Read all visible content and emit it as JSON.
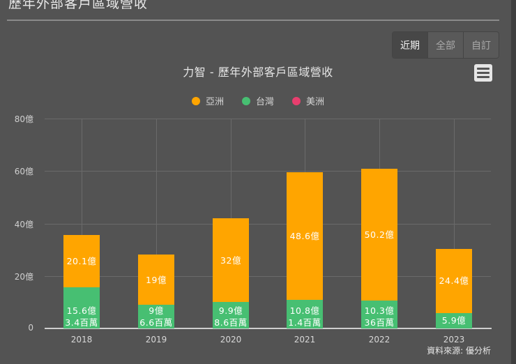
{
  "page": {
    "title": "歷年外部客戶區域營收"
  },
  "range_buttons": [
    {
      "label": "近期",
      "active": true
    },
    {
      "label": "全部",
      "active": false
    },
    {
      "label": "自訂",
      "active": false
    }
  ],
  "menu_icon": "hamburger-menu-icon",
  "colors": {
    "background": "#535353",
    "asia": "#FFA500",
    "taiwan": "#47BF72",
    "america": "#E83E6E"
  },
  "chart_data": {
    "type": "bar",
    "stacked": true,
    "title": "力智 - 歷年外部客戶區域營收",
    "xlabel": "",
    "ylabel": "",
    "unit": "億",
    "categories": [
      "2018",
      "2019",
      "2020",
      "2021",
      "2022",
      "2023"
    ],
    "series": [
      {
        "name": "亞洲",
        "color": "#FFA500",
        "values": [
          20.1,
          19,
          32,
          48.6,
          50.2,
          24.4
        ],
        "labels": [
          "20.1億",
          "19億",
          "32億",
          "48.6億",
          "50.2億",
          "24.4億"
        ]
      },
      {
        "name": "台灣",
        "color": "#47BF72",
        "values": [
          15.6,
          9,
          9.9,
          10.8,
          10.3,
          5.9
        ],
        "labels": [
          "15.6億",
          "9億",
          "9.9億",
          "10.8億",
          "10.3億",
          "5.9億"
        ]
      },
      {
        "name": "美洲",
        "color": "#E83E6E",
        "values": [
          0.034,
          0.066,
          0.086,
          0.014,
          0.36,
          0
        ],
        "labels": [
          "3.4百萬",
          "6.6百萬",
          "8.6百萬",
          "1.4百萬",
          "36百萬",
          ""
        ]
      }
    ],
    "yticks": [
      "0",
      "20億",
      "40億",
      "60億",
      "80億"
    ],
    "ylim": [
      0,
      80
    ],
    "grid": true,
    "legend_position": "top",
    "source": "資料來源: 優分析"
  }
}
